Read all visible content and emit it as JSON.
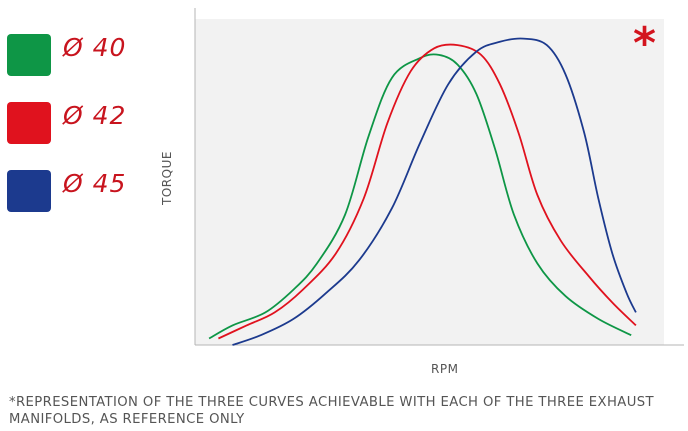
{
  "legend": [
    {
      "label": "Ø 40",
      "color": "#0e9646"
    },
    {
      "label": "Ø 42",
      "color": "#e0121e"
    },
    {
      "label": "Ø 45",
      "color": "#1c3a8e"
    }
  ],
  "note_marker": "*",
  "footnote": "*REPRESENTATION OF THE THREE CURVES ACHIEVABLE WITH EACH OF THE THREE EXHAUST MANIFOLDS, AS REFERENCE ONLY",
  "chart_data": {
    "type": "line",
    "xlabel": "RPM",
    "ylabel": "TORQUE",
    "xlim": [
      0,
      100
    ],
    "ylim": [
      0,
      100
    ],
    "grid": false,
    "plot_background": "#f2f2f2",
    "series": [
      {
        "name": "Ø 40",
        "color": "#0e9646",
        "x": [
          3,
          8,
          15,
          21,
          26,
          32,
          37,
          42,
          48,
          52,
          56,
          60,
          64,
          68,
          73,
          79,
          86,
          93
        ],
        "y": [
          2,
          6,
          10,
          17,
          25,
          40,
          64,
          82,
          88,
          89,
          86,
          77,
          60,
          40,
          25,
          15,
          8,
          3
        ]
      },
      {
        "name": "Ø 42",
        "color": "#e0121e",
        "x": [
          5,
          11,
          17,
          23,
          30,
          36,
          41,
          46,
          51,
          56,
          61,
          65,
          69,
          73,
          78,
          84,
          89,
          94
        ],
        "y": [
          2,
          6,
          10,
          17,
          28,
          45,
          68,
          84,
          91,
          92,
          89,
          80,
          65,
          46,
          32,
          21,
          13,
          6
        ]
      },
      {
        "name": "Ø 45",
        "color": "#1c3a8e",
        "x": [
          8,
          14,
          21,
          28,
          35,
          42,
          48,
          54,
          60,
          65,
          70,
          75,
          79,
          83,
          86,
          89,
          92,
          94
        ],
        "y": [
          0,
          3,
          8,
          16,
          26,
          42,
          62,
          80,
          90,
          93,
          94,
          92,
          83,
          65,
          45,
          28,
          16,
          10
        ]
      }
    ]
  }
}
